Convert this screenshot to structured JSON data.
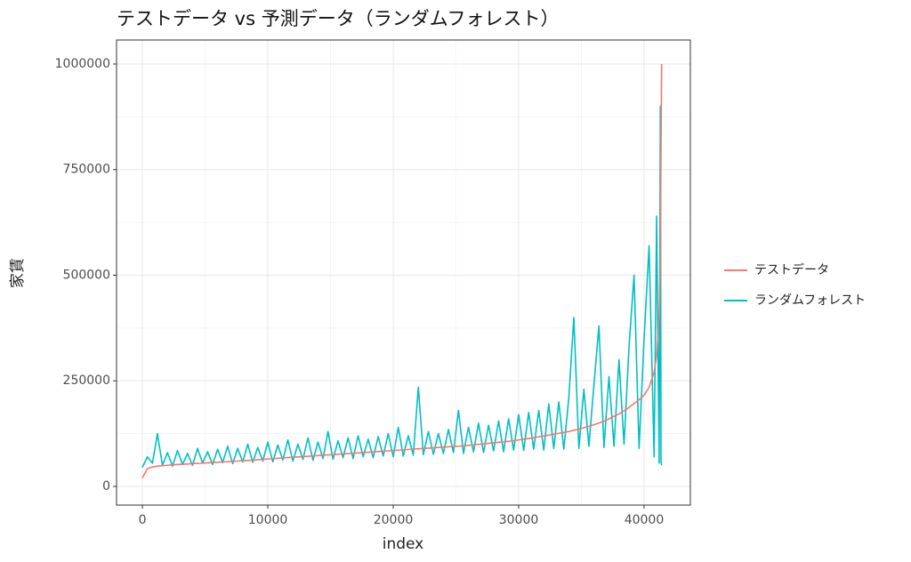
{
  "chart_data": {
    "type": "line",
    "title": "テストデータ vs 予測データ（ランダムフォレスト）",
    "x_label": "index",
    "y_label": "家賃",
    "x": [
      0,
      400,
      800,
      1200,
      1600,
      2000,
      2400,
      2800,
      3200,
      3600,
      4000,
      4400,
      4800,
      5200,
      5600,
      6000,
      6400,
      6800,
      7200,
      7600,
      8000,
      8400,
      8800,
      9200,
      9600,
      10000,
      10400,
      10800,
      11200,
      11600,
      12000,
      12400,
      12800,
      13200,
      13600,
      14000,
      14400,
      14800,
      15200,
      15600,
      16000,
      16400,
      16800,
      17200,
      17600,
      18000,
      18400,
      18800,
      19200,
      19600,
      20000,
      20400,
      20800,
      21200,
      21600,
      22000,
      22400,
      22800,
      23200,
      23600,
      24000,
      24400,
      24800,
      25200,
      25600,
      26000,
      26400,
      26800,
      27200,
      27600,
      28000,
      28400,
      28800,
      29200,
      29600,
      30000,
      30400,
      30800,
      31200,
      31600,
      32000,
      32400,
      32800,
      33200,
      33600,
      34000,
      34400,
      34800,
      35200,
      35600,
      36000,
      36400,
      36800,
      37200,
      37600,
      38000,
      38400,
      38800,
      39200,
      39600,
      40000,
      40400,
      40800,
      41000,
      41200,
      41300,
      41350,
      41400
    ],
    "series": [
      {
        "name": "テストデータ",
        "color": "#F8766D",
        "values": [
          20000,
          42000,
          46000,
          48000,
          49000,
          50000,
          51000,
          52000,
          52500,
          53000,
          54000,
          54500,
          55000,
          56000,
          56500,
          57000,
          58000,
          58500,
          59000,
          60000,
          61000,
          61500,
          62000,
          63000,
          64000,
          65000,
          65800,
          66600,
          67400,
          68200,
          69000,
          69800,
          70600,
          71400,
          72200,
          73000,
          73800,
          74600,
          75400,
          76200,
          77000,
          77800,
          78600,
          79400,
          80200,
          81000,
          81800,
          82600,
          83400,
          84200,
          85000,
          85800,
          86600,
          87400,
          88200,
          89000,
          89800,
          90600,
          91400,
          92200,
          93000,
          93800,
          94600,
          95200,
          96200,
          97200,
          98400,
          99600,
          100800,
          102000,
          103200,
          104400,
          105600,
          106800,
          108200,
          110000,
          111800,
          113600,
          115400,
          117400,
          119400,
          121400,
          123600,
          125800,
          127800,
          130000,
          132800,
          135800,
          139000,
          142400,
          146000,
          150000,
          154500,
          160000,
          166000,
          172000,
          179000,
          187000,
          196000,
          205000,
          216000,
          235000,
          270000,
          310000,
          400000,
          550000,
          800000,
          1000000
        ]
      },
      {
        "name": "ランダムフォレスト",
        "color": "#00BFC4",
        "values": [
          45000,
          70000,
          55000,
          125000,
          50000,
          80000,
          48000,
          85000,
          52000,
          78000,
          50000,
          90000,
          55000,
          82000,
          52000,
          88000,
          56000,
          95000,
          54000,
          90000,
          58000,
          100000,
          57000,
          92000,
          60000,
          105000,
          58000,
          98000,
          62000,
          110000,
          60000,
          100000,
          64000,
          115000,
          62000,
          105000,
          66000,
          130000,
          64000,
          108000,
          68000,
          115000,
          66000,
          120000,
          70000,
          112000,
          68000,
          118000,
          72000,
          125000,
          70000,
          140000,
          72000,
          120000,
          74000,
          235000,
          75000,
          130000,
          76000,
          125000,
          78000,
          135000,
          80000,
          180000,
          78000,
          140000,
          82000,
          150000,
          80000,
          145000,
          84000,
          155000,
          82000,
          160000,
          86000,
          170000,
          85000,
          175000,
          88000,
          180000,
          86000,
          195000,
          90000,
          200000,
          88000,
          210000,
          400000,
          90000,
          230000,
          95000,
          240000,
          380000,
          92000,
          260000,
          95000,
          300000,
          100000,
          330000,
          500000,
          90000,
          350000,
          570000,
          70000,
          640000,
          55000,
          900000,
          60000,
          50000
        ]
      }
    ],
    "xlim": [
      -2060,
      43690
    ],
    "ylim": [
      -44200,
      1056800
    ],
    "xticks": [
      0,
      10000,
      20000,
      30000,
      40000
    ],
    "yticks": [
      0,
      250000,
      500000,
      750000,
      1000000
    ],
    "grid": true,
    "legend": "right"
  }
}
